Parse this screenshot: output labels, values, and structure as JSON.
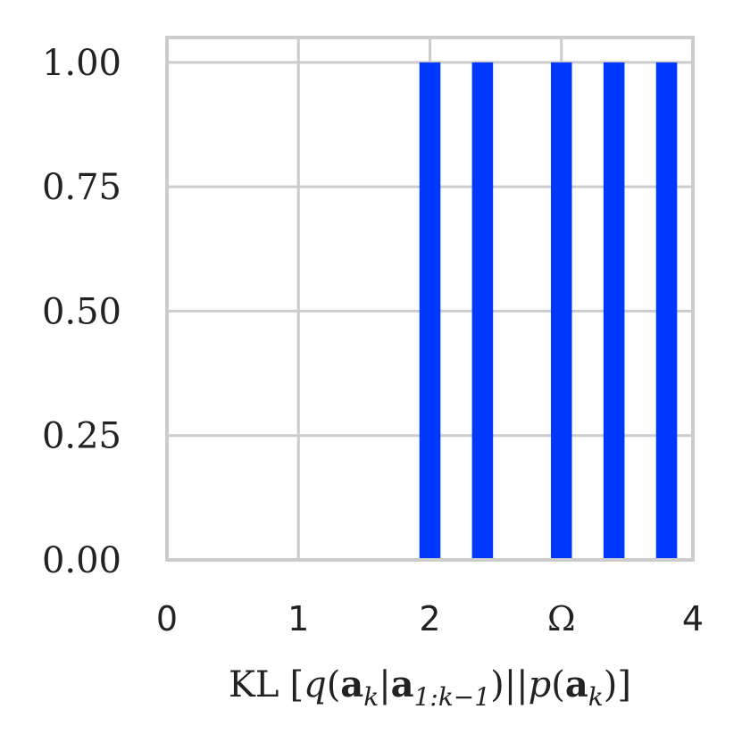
{
  "chart_data": {
    "type": "bar",
    "title": "",
    "ylabel": "",
    "xlabel_parts": [
      "KL",
      "[",
      "q",
      "(",
      "a",
      "k",
      "|",
      "a",
      "1:k−1",
      ")",
      "||",
      "p",
      "(",
      "a",
      "k",
      ")",
      "]"
    ],
    "xlim": [
      0,
      4
    ],
    "ylim": [
      0,
      1.05
    ],
    "xticks": [
      {
        "value": 0,
        "label": "0"
      },
      {
        "value": 1,
        "label": "1"
      },
      {
        "value": 2,
        "label": "2"
      },
      {
        "value": 3,
        "label": "Ω"
      },
      {
        "value": 4,
        "label": "4"
      }
    ],
    "yticks": [
      {
        "value": 0,
        "label": "0.00"
      },
      {
        "value": 0.25,
        "label": "0.25"
      },
      {
        "value": 0.5,
        "label": "0.50"
      },
      {
        "value": 0.75,
        "label": "0.75"
      },
      {
        "value": 1,
        "label": "1.00"
      }
    ],
    "bar_width": 0.16,
    "bars": [
      {
        "x": 2.0,
        "value": 1.0
      },
      {
        "x": 2.4,
        "value": 1.0
      },
      {
        "x": 3.0,
        "value": 1.0
      },
      {
        "x": 3.4,
        "value": 1.0
      },
      {
        "x": 3.8,
        "value": 1.0
      }
    ],
    "grid": true,
    "colors": {
      "bar": "#0038ff",
      "grid": "#cccccc",
      "axis": "#cccccc"
    }
  }
}
